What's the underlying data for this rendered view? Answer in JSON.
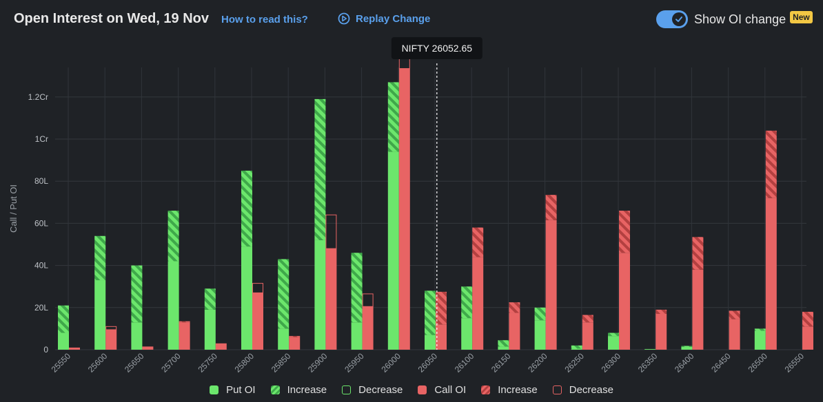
{
  "header": {
    "title": "Open Interest on Wed, 19 Nov",
    "how_to_label": "How to read this?",
    "replay_label": "Replay Change",
    "toggle_label": "Show OI change",
    "new_badge": "New"
  },
  "colors": {
    "put": "#6ce66c",
    "call": "#e86464",
    "accent": "#5aa0ec",
    "background": "#1f2226",
    "badge": "#f2c744"
  },
  "chart_data": {
    "type": "bar",
    "title": "Open Interest on Wed, 19 Nov",
    "xlabel": "",
    "ylabel": "Call / Put OI",
    "ylim": [
      0,
      13400000
    ],
    "y_ticks": [
      {
        "value": 0,
        "label": "0"
      },
      {
        "value": 2000000,
        "label": "20L"
      },
      {
        "value": 4000000,
        "label": "40L"
      },
      {
        "value": 6000000,
        "label": "60L"
      },
      {
        "value": 8000000,
        "label": "80L"
      },
      {
        "value": 10000000,
        "label": "1Cr"
      },
      {
        "value": 12000000,
        "label": "1.2Cr"
      }
    ],
    "spot": {
      "label": "NIFTY 26052.65",
      "value": 26052.65
    },
    "categories": [
      "25550",
      "25600",
      "25650",
      "25700",
      "25750",
      "25800",
      "25850",
      "25900",
      "25950",
      "26000",
      "26050",
      "26100",
      "26150",
      "26200",
      "26250",
      "26300",
      "26350",
      "26400",
      "26450",
      "26500",
      "26550"
    ],
    "put_oi": [
      2100000,
      5400000,
      4000000,
      6600000,
      2900000,
      8500000,
      4300000,
      11900000,
      4600000,
      12700000,
      2800000,
      3000000,
      450000,
      2000000,
      200000,
      800000,
      30000,
      180000,
      0,
      1000000,
      0
    ],
    "put_change": [
      1300000,
      2100000,
      2700000,
      2400000,
      1000000,
      3600000,
      3300000,
      6700000,
      3300000,
      3300000,
      2100000,
      1500000,
      300000,
      600000,
      150000,
      150000,
      0,
      50000,
      0,
      100000,
      0
    ],
    "call_oi": [
      100000,
      950000,
      150000,
      1350000,
      300000,
      2700000,
      650000,
      4800000,
      2050000,
      13350000,
      2750000,
      5800000,
      2250000,
      7350000,
      1650000,
      6600000,
      1900000,
      5350000,
      1850000,
      10400000,
      1800000
    ],
    "call_change": [
      0,
      -150000,
      0,
      50000,
      0,
      -450000,
      50000,
      -1600000,
      -600000,
      -1400000,
      1550000,
      1400000,
      500000,
      1200000,
      350000,
      2000000,
      200000,
      1550000,
      400000,
      3200000,
      700000
    ],
    "legend": [
      {
        "name": "Put OI",
        "kind": "put-solid"
      },
      {
        "name": "Increase",
        "kind": "put-increase"
      },
      {
        "name": "Decrease",
        "kind": "put-decrease"
      },
      {
        "name": "Call OI",
        "kind": "call-solid"
      },
      {
        "name": "Increase",
        "kind": "call-increase"
      },
      {
        "name": "Decrease",
        "kind": "call-decrease"
      }
    ]
  }
}
